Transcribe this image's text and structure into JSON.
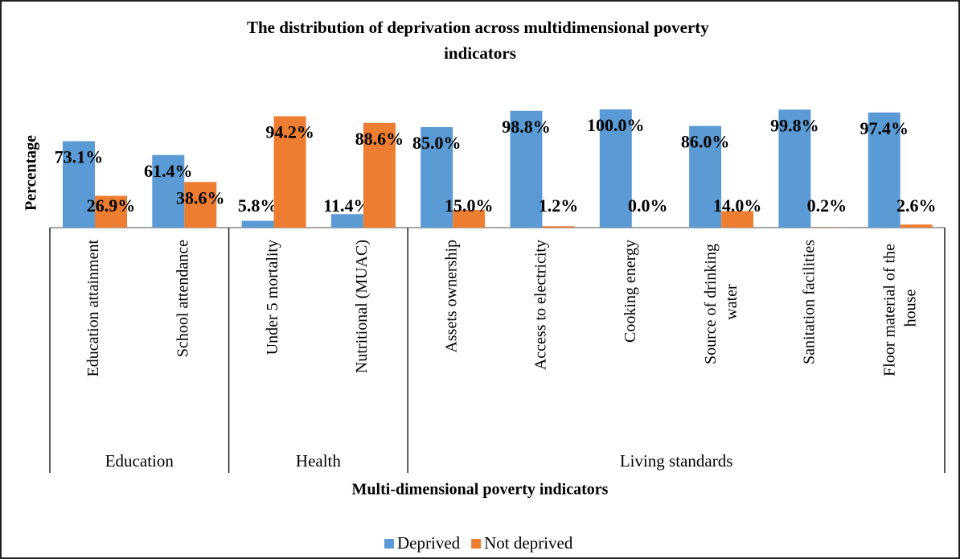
{
  "chart_data": {
    "type": "bar",
    "title": "The distribution of deprivation across multidimensional poverty indicators",
    "y_label": "Percentage",
    "x_label": "Multi-dimensional poverty indicators",
    "categories": [
      "Education attainment",
      "School attendance",
      "Under 5  mortality",
      "Nutritional (MUAC)",
      "Assets ownership",
      "Access to electricity",
      "Cooking energy",
      "Source of drinking water",
      "Sanitation facilities",
      "Floor material of the house"
    ],
    "groups": [
      {
        "name": "Education",
        "count": 2
      },
      {
        "name": "Health",
        "count": 2
      },
      {
        "name": "Living standards",
        "count": 6
      }
    ],
    "ylim": [
      0,
      100
    ],
    "series": [
      {
        "name": "Deprived",
        "color": "#5b9bd5",
        "values": [
          73.1,
          61.4,
          5.8,
          11.4,
          85.0,
          98.8,
          100.0,
          86.0,
          99.8,
          97.4
        ],
        "value_labels": [
          "73.1%",
          "61.4%",
          "5.8%",
          "11.4%",
          "85.0%",
          "98.8%",
          "100.0%",
          "86.0%",
          "99.8%",
          "97.4%"
        ]
      },
      {
        "name": "Not deprived",
        "color": "#ed7d31",
        "values": [
          26.9,
          38.6,
          94.2,
          88.6,
          15.0,
          1.2,
          0.0,
          14.0,
          0.2,
          2.6
        ],
        "value_labels": [
          "26.9%",
          "38.6%",
          "94.2%",
          "88.6%",
          "15.0%",
          "1.2%",
          "0.0%",
          "14.0%",
          "0.2%",
          "2.6%"
        ]
      }
    ],
    "legend": "bottom"
  }
}
